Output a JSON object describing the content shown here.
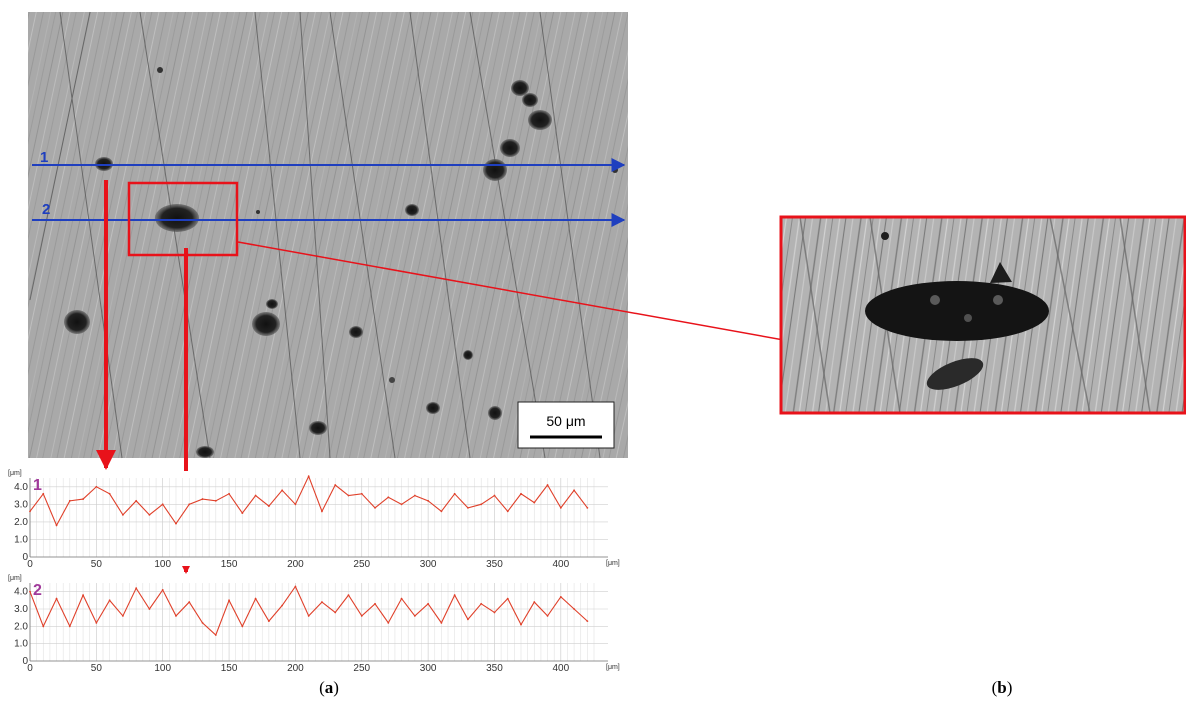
{
  "colors": {
    "scan_line": "#1f3fbf",
    "roi_box": "#e8121a",
    "profile_line": "#e0402a",
    "profile_number": "#a0399a",
    "micrograph_base": "#a8a8a8"
  },
  "panels": {
    "a": {
      "open": "(",
      "letter": "a",
      "close": ")"
    },
    "b": {
      "open": "(",
      "letter": "b",
      "close": ")"
    }
  },
  "micrograph": {
    "scan_line_labels": [
      "1",
      "2"
    ],
    "scale_bar_label": "50 μm"
  },
  "profiles": {
    "unit_y": "[μm]",
    "unit_x": "[μm]",
    "y_ticks": [
      "0",
      "1.0",
      "2.0",
      "3.0",
      "4.0"
    ],
    "x_ticks": [
      "0",
      "50",
      "100",
      "150",
      "200",
      "250",
      "300",
      "350",
      "400"
    ],
    "items": [
      {
        "label": "1"
      },
      {
        "label": "2"
      }
    ]
  },
  "chart_data": [
    {
      "type": "line",
      "series": [
        {
          "name": "1"
        }
      ],
      "xlabel": "[μm]",
      "ylabel": "[μm]",
      "xlim": [
        0,
        425
      ],
      "ylim": [
        0,
        4.5
      ],
      "x": [
        0,
        10,
        20,
        30,
        40,
        50,
        60,
        70,
        80,
        90,
        100,
        110,
        120,
        130,
        140,
        150,
        160,
        170,
        180,
        190,
        200,
        210,
        220,
        230,
        240,
        250,
        260,
        270,
        280,
        290,
        300,
        310,
        320,
        330,
        340,
        350,
        360,
        370,
        380,
        390,
        400,
        410,
        420
      ],
      "values": [
        2.6,
        3.6,
        1.8,
        3.2,
        3.3,
        4.0,
        3.6,
        2.4,
        3.2,
        2.4,
        3.0,
        1.9,
        3.0,
        3.3,
        3.2,
        3.6,
        2.5,
        3.5,
        2.9,
        3.8,
        3.0,
        4.6,
        2.6,
        4.1,
        3.5,
        3.6,
        2.8,
        3.4,
        3.0,
        3.5,
        3.2,
        2.6,
        3.6,
        2.8,
        3.0,
        3.5,
        2.6,
        3.6,
        3.1,
        4.1,
        2.8,
        3.8,
        2.8
      ]
    },
    {
      "type": "line",
      "series": [
        {
          "name": "2"
        }
      ],
      "xlabel": "[μm]",
      "ylabel": "[μm]",
      "xlim": [
        0,
        425
      ],
      "ylim": [
        0,
        4.5
      ],
      "x": [
        0,
        10,
        20,
        30,
        40,
        50,
        60,
        70,
        80,
        90,
        100,
        110,
        120,
        130,
        140,
        150,
        160,
        170,
        180,
        190,
        200,
        210,
        220,
        230,
        240,
        250,
        260,
        270,
        280,
        290,
        300,
        310,
        320,
        330,
        340,
        350,
        360,
        370,
        380,
        390,
        400,
        410,
        420
      ],
      "values": [
        4.0,
        2.0,
        3.6,
        2.0,
        3.8,
        2.2,
        3.5,
        2.6,
        4.2,
        3.0,
        4.1,
        2.6,
        3.4,
        2.2,
        1.5,
        3.5,
        2.0,
        3.6,
        2.3,
        3.2,
        4.3,
        2.6,
        3.4,
        2.8,
        3.8,
        2.6,
        3.3,
        2.2,
        3.6,
        2.6,
        3.3,
        2.2,
        3.8,
        2.4,
        3.3,
        2.8,
        3.6,
        2.1,
        3.4,
        2.6,
        3.7,
        3.0,
        2.3
      ]
    }
  ]
}
